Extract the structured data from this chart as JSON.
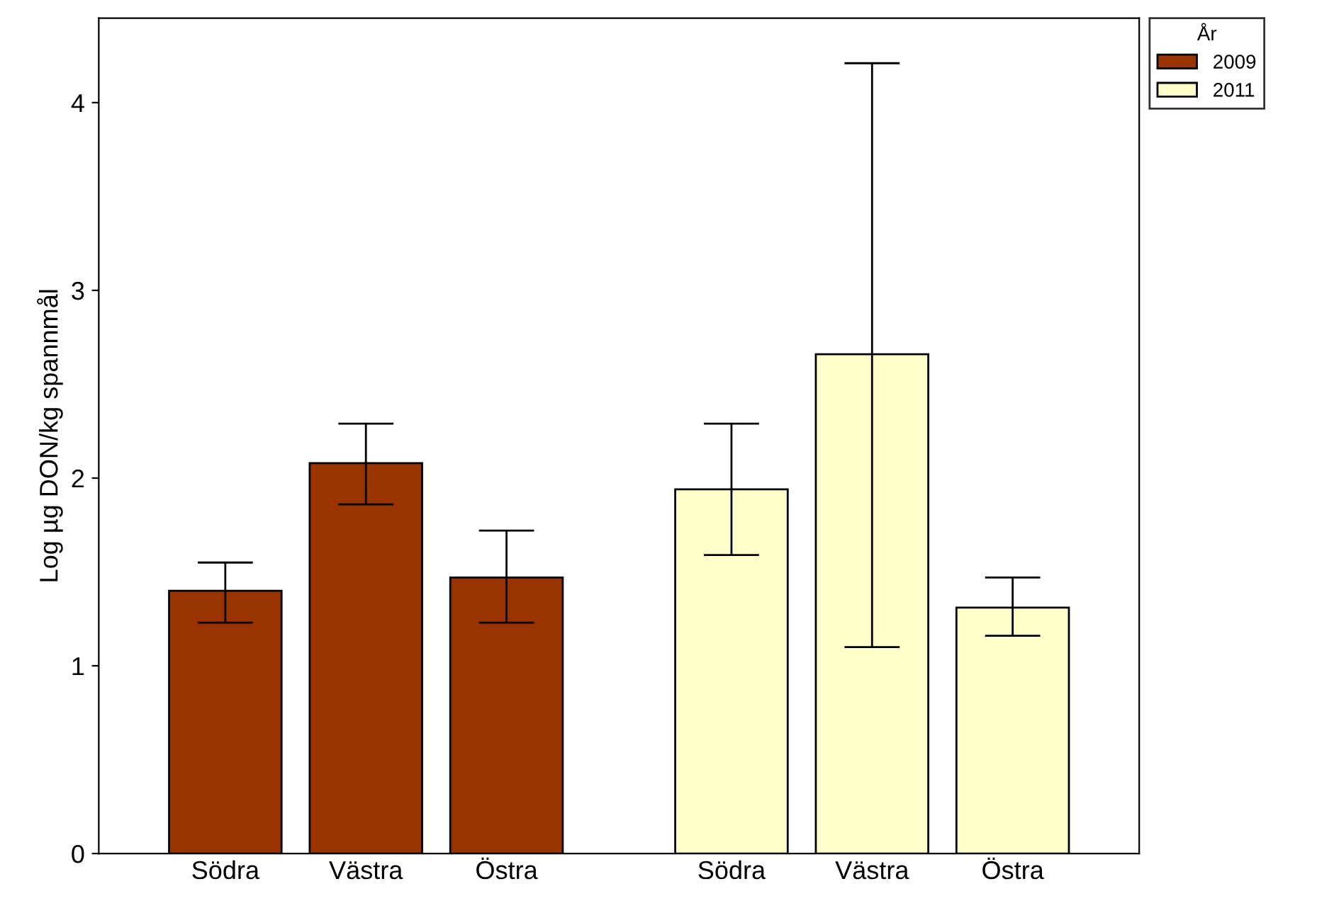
{
  "chart_data": {
    "type": "bar",
    "ylabel": "Log µg DON/kg spannmål",
    "legend_title": "År",
    "legend": "top right",
    "grid": false,
    "categories": [
      "Södra",
      "Västra",
      "Östra",
      "Södra",
      "Västra",
      "Östra"
    ],
    "series": [
      {
        "name": "2009",
        "color": "#993300",
        "values": [
          1.4,
          2.08,
          1.47,
          null,
          null,
          null
        ],
        "errors": [
          [
            1.23,
            1.55
          ],
          [
            1.86,
            2.29
          ],
          [
            1.23,
            1.72
          ],
          null,
          null,
          null
        ]
      },
      {
        "name": "2011",
        "color": "#ffffcc",
        "values": [
          null,
          null,
          null,
          1.94,
          2.66,
          1.31
        ],
        "errors": [
          null,
          null,
          null,
          [
            1.59,
            2.29
          ],
          [
            1.1,
            4.21
          ],
          [
            1.16,
            1.47
          ]
        ]
      }
    ],
    "ylim": [
      0,
      4.45
    ],
    "yticks": [
      0,
      1,
      2,
      3,
      4
    ]
  }
}
